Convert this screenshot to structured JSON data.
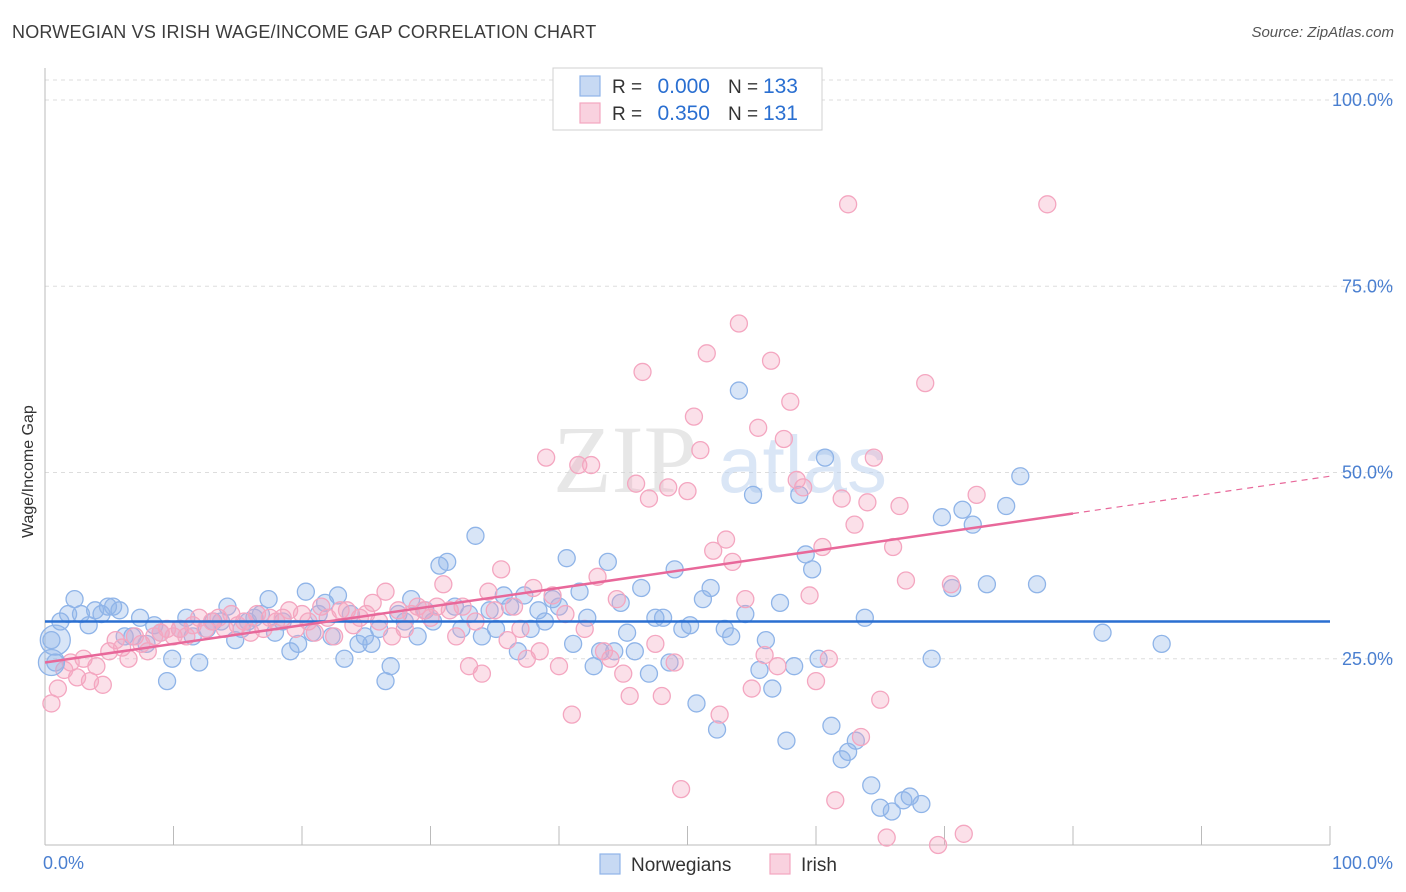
{
  "title": "NORWEGIAN VS IRISH WAGE/INCOME GAP CORRELATION CHART",
  "source": "Source: ZipAtlas.com",
  "watermark": {
    "zip": "ZIP",
    "atlas": "atlas"
  },
  "chart_data": {
    "type": "scatter",
    "xlabel": "",
    "ylabel": "Wage/Income Gap",
    "xlim": [
      0,
      100
    ],
    "ylim": [
      0,
      100
    ],
    "x_tick_labels": [
      "0.0%",
      "100.0%"
    ],
    "y_tick_values": [
      25,
      50,
      75,
      100
    ],
    "y_tick_labels": [
      "25.0%",
      "50.0%",
      "75.0%",
      "100.0%"
    ],
    "grid": true,
    "legend_position": "top-center",
    "legend": [
      {
        "r_label": "R =",
        "r_value": "0.000",
        "n_label": "N =",
        "n_value": "133",
        "color": "#8fb4e8"
      },
      {
        "r_label": "R =",
        "r_value": "0.350",
        "n_label": "N =",
        "n_value": "131",
        "color": "#f4a6c0"
      }
    ],
    "series": [
      {
        "name": "Norwegians",
        "color": "#8fb4e8",
        "line_color": "#2a6fd1",
        "trend": {
          "x": [
            0,
            100
          ],
          "y": [
            30.0,
            30.0
          ]
        },
        "points": [
          [
            0.5,
            27.5
          ],
          [
            0.8,
            24.5
          ],
          [
            1.2,
            30
          ],
          [
            1.8,
            31
          ],
          [
            2.3,
            33
          ],
          [
            2.8,
            31
          ],
          [
            3.4,
            29.5
          ],
          [
            3.9,
            31.5
          ],
          [
            4.4,
            31
          ],
          [
            4.9,
            32
          ],
          [
            5.3,
            32
          ],
          [
            5.8,
            31.5
          ],
          [
            6.2,
            28
          ],
          [
            6.8,
            28
          ],
          [
            7.4,
            30.5
          ],
          [
            7.9,
            27
          ],
          [
            8.5,
            29.5
          ],
          [
            9.0,
            28.5
          ],
          [
            9.5,
            22
          ],
          [
            9.9,
            25
          ],
          [
            10.5,
            29
          ],
          [
            11.0,
            30.5
          ],
          [
            11.5,
            28
          ],
          [
            12.0,
            24.5
          ],
          [
            12.6,
            29
          ],
          [
            13.1,
            30
          ],
          [
            13.7,
            30
          ],
          [
            14.2,
            32
          ],
          [
            14.8,
            27.5
          ],
          [
            15.3,
            29
          ],
          [
            15.8,
            30
          ],
          [
            16.3,
            30.5
          ],
          [
            16.8,
            31
          ],
          [
            17.4,
            33
          ],
          [
            17.9,
            28.5
          ],
          [
            18.5,
            30
          ],
          [
            19.1,
            26
          ],
          [
            19.7,
            27
          ],
          [
            20.3,
            34
          ],
          [
            20.8,
            28.5
          ],
          [
            21.3,
            31
          ],
          [
            21.8,
            32.5
          ],
          [
            22.3,
            28
          ],
          [
            22.8,
            33.5
          ],
          [
            23.3,
            25
          ],
          [
            23.8,
            31
          ],
          [
            24.4,
            27
          ],
          [
            24.9,
            28
          ],
          [
            25.4,
            27
          ],
          [
            26.0,
            29
          ],
          [
            26.5,
            22
          ],
          [
            26.9,
            24
          ],
          [
            27.5,
            31
          ],
          [
            28.0,
            30
          ],
          [
            28.5,
            33
          ],
          [
            29.0,
            28
          ],
          [
            29.6,
            31.5
          ],
          [
            30.2,
            30
          ],
          [
            30.7,
            37.5
          ],
          [
            31.3,
            38
          ],
          [
            31.9,
            32
          ],
          [
            32.4,
            29
          ],
          [
            33.0,
            31
          ],
          [
            33.5,
            41.5
          ],
          [
            34.0,
            28
          ],
          [
            34.6,
            31.5
          ],
          [
            35.1,
            29
          ],
          [
            35.7,
            33.5
          ],
          [
            36.2,
            32
          ],
          [
            36.8,
            26
          ],
          [
            37.3,
            33.5
          ],
          [
            37.8,
            29
          ],
          [
            38.4,
            31.5
          ],
          [
            38.9,
            30
          ],
          [
            39.5,
            33
          ],
          [
            40.0,
            32
          ],
          [
            40.6,
            38.5
          ],
          [
            41.1,
            27
          ],
          [
            41.6,
            34
          ],
          [
            42.2,
            30.5
          ],
          [
            42.7,
            24
          ],
          [
            43.2,
            26
          ],
          [
            43.8,
            38
          ],
          [
            44.3,
            26
          ],
          [
            44.8,
            32.5
          ],
          [
            45.3,
            28.5
          ],
          [
            45.9,
            26
          ],
          [
            46.4,
            34.5
          ],
          [
            47.0,
            23
          ],
          [
            47.5,
            30.5
          ],
          [
            48.1,
            30.5
          ],
          [
            48.6,
            24.5
          ],
          [
            49.0,
            37
          ],
          [
            49.6,
            29
          ],
          [
            50.2,
            29.5
          ],
          [
            50.7,
            19
          ],
          [
            51.2,
            33
          ],
          [
            51.8,
            34.5
          ],
          [
            52.3,
            15.5
          ],
          [
            52.9,
            29
          ],
          [
            53.4,
            28
          ],
          [
            54.0,
            61
          ],
          [
            54.5,
            31
          ],
          [
            55.1,
            47
          ],
          [
            55.6,
            23.5
          ],
          [
            56.1,
            27.5
          ],
          [
            56.6,
            21
          ],
          [
            57.2,
            32.5
          ],
          [
            57.7,
            14
          ],
          [
            58.3,
            24
          ],
          [
            58.7,
            47
          ],
          [
            59.2,
            39
          ],
          [
            59.7,
            37
          ],
          [
            60.2,
            25
          ],
          [
            60.7,
            52
          ],
          [
            61.2,
            16
          ],
          [
            62.0,
            11.5
          ],
          [
            62.5,
            12.5
          ],
          [
            63.1,
            14
          ],
          [
            63.8,
            30.5
          ],
          [
            64.3,
            8
          ],
          [
            65.0,
            5
          ],
          [
            65.9,
            4.5
          ],
          [
            66.8,
            6
          ],
          [
            67.3,
            6.5
          ],
          [
            68.2,
            5.5
          ],
          [
            69.0,
            25
          ],
          [
            69.8,
            44
          ],
          [
            70.6,
            34.5
          ],
          [
            71.4,
            45
          ],
          [
            72.2,
            43
          ],
          [
            73.3,
            35
          ],
          [
            74.8,
            45.5
          ],
          [
            75.9,
            49.5
          ],
          [
            77.2,
            35
          ],
          [
            82.3,
            28.5
          ],
          [
            86.9,
            27
          ]
        ]
      },
      {
        "name": "Irish",
        "color": "#f4a6c0",
        "line_color": "#e8689a",
        "trend": {
          "x": [
            0,
            80
          ],
          "y": [
            24.5,
            44.5
          ]
        },
        "trend_ext": {
          "x": [
            80,
            100
          ],
          "y": [
            44.5,
            49.5
          ]
        },
        "points": [
          [
            0.5,
            19
          ],
          [
            1.0,
            21
          ],
          [
            1.5,
            23.5
          ],
          [
            2.0,
            24.5
          ],
          [
            2.5,
            22.5
          ],
          [
            3.0,
            25
          ],
          [
            3.5,
            22
          ],
          [
            4.0,
            24
          ],
          [
            4.5,
            21.5
          ],
          [
            5.0,
            26
          ],
          [
            5.5,
            27.5
          ],
          [
            6.0,
            26.5
          ],
          [
            6.5,
            25
          ],
          [
            7.0,
            28
          ],
          [
            7.5,
            27
          ],
          [
            8.0,
            26
          ],
          [
            8.5,
            28
          ],
          [
            9.0,
            28.5
          ],
          [
            9.5,
            29
          ],
          [
            10.0,
            28
          ],
          [
            10.5,
            29
          ],
          [
            11.0,
            28
          ],
          [
            11.5,
            29.5
          ],
          [
            12.0,
            30.5
          ],
          [
            12.5,
            29
          ],
          [
            13.0,
            30
          ],
          [
            13.5,
            30.5
          ],
          [
            14.0,
            29
          ],
          [
            14.5,
            31
          ],
          [
            15.0,
            29.5
          ],
          [
            15.5,
            30
          ],
          [
            16.0,
            28.5
          ],
          [
            16.5,
            31
          ],
          [
            17.0,
            29
          ],
          [
            17.5,
            30.5
          ],
          [
            18.0,
            30
          ],
          [
            18.5,
            30.5
          ],
          [
            19.0,
            31.5
          ],
          [
            19.5,
            29
          ],
          [
            20.0,
            31
          ],
          [
            20.5,
            30
          ],
          [
            21.0,
            28.5
          ],
          [
            21.5,
            32
          ],
          [
            22.0,
            30.5
          ],
          [
            22.5,
            28
          ],
          [
            23.0,
            31.5
          ],
          [
            23.5,
            31.5
          ],
          [
            24.0,
            29.5
          ],
          [
            24.5,
            30.5
          ],
          [
            25.0,
            31
          ],
          [
            25.5,
            32.5
          ],
          [
            26.0,
            30
          ],
          [
            26.5,
            34
          ],
          [
            27.0,
            28
          ],
          [
            27.5,
            31.5
          ],
          [
            28.0,
            29
          ],
          [
            28.5,
            31
          ],
          [
            29.0,
            32
          ],
          [
            29.5,
            31.5
          ],
          [
            30.0,
            30.5
          ],
          [
            30.5,
            32
          ],
          [
            31.0,
            35
          ],
          [
            31.5,
            31.5
          ],
          [
            32.0,
            28
          ],
          [
            32.5,
            32
          ],
          [
            33.0,
            24
          ],
          [
            33.5,
            30
          ],
          [
            34.0,
            23
          ],
          [
            34.5,
            34
          ],
          [
            35.0,
            31.5
          ],
          [
            35.5,
            37
          ],
          [
            36.0,
            27.5
          ],
          [
            36.5,
            32
          ],
          [
            37.0,
            29
          ],
          [
            37.5,
            25
          ],
          [
            38.0,
            34.5
          ],
          [
            38.5,
            26
          ],
          [
            39.0,
            52
          ],
          [
            39.5,
            33.5
          ],
          [
            40.0,
            24
          ],
          [
            40.5,
            31
          ],
          [
            41.0,
            17.5
          ],
          [
            41.5,
            51
          ],
          [
            42.0,
            29
          ],
          [
            42.5,
            51
          ],
          [
            43.0,
            36
          ],
          [
            43.5,
            26
          ],
          [
            44.0,
            25
          ],
          [
            44.5,
            33
          ],
          [
            45.0,
            23
          ],
          [
            45.5,
            20
          ],
          [
            46.0,
            48.5
          ],
          [
            46.5,
            63.5
          ],
          [
            47.0,
            46.5
          ],
          [
            47.5,
            27
          ],
          [
            48.0,
            20
          ],
          [
            48.5,
            48
          ],
          [
            49.0,
            24.5
          ],
          [
            49.5,
            7.5
          ],
          [
            50.0,
            47.5
          ],
          [
            50.5,
            57.5
          ],
          [
            51.0,
            53
          ],
          [
            51.5,
            66
          ],
          [
            52.0,
            39.5
          ],
          [
            52.5,
            17.5
          ],
          [
            53.0,
            41
          ],
          [
            53.5,
            38
          ],
          [
            54.0,
            70
          ],
          [
            54.5,
            33
          ],
          [
            55.0,
            21
          ],
          [
            55.5,
            56
          ],
          [
            56.0,
            25.5
          ],
          [
            56.5,
            65
          ],
          [
            57.0,
            24
          ],
          [
            57.5,
            54.5
          ],
          [
            58.0,
            59.5
          ],
          [
            58.5,
            49
          ],
          [
            59.0,
            48
          ],
          [
            59.5,
            33.5
          ],
          [
            60.0,
            22
          ],
          [
            60.5,
            40
          ],
          [
            61.0,
            25
          ],
          [
            61.5,
            6
          ],
          [
            62.0,
            46.5
          ],
          [
            62.5,
            86
          ],
          [
            63.0,
            43
          ],
          [
            63.5,
            14.5
          ],
          [
            64.0,
            46
          ],
          [
            64.5,
            52
          ],
          [
            65.0,
            19.5
          ],
          [
            65.5,
            1
          ],
          [
            66.0,
            40
          ],
          [
            66.5,
            45.5
          ],
          [
            67.0,
            35.5
          ],
          [
            68.5,
            62
          ],
          [
            69.5,
            0
          ],
          [
            70.5,
            35
          ],
          [
            71.5,
            1.5
          ],
          [
            72.5,
            47
          ],
          [
            78.0,
            86
          ]
        ]
      }
    ]
  },
  "bottom_legend": [
    {
      "label": "Norwegians",
      "color": "#8fb4e8"
    },
    {
      "label": "Irish",
      "color": "#f4a6c0"
    }
  ]
}
